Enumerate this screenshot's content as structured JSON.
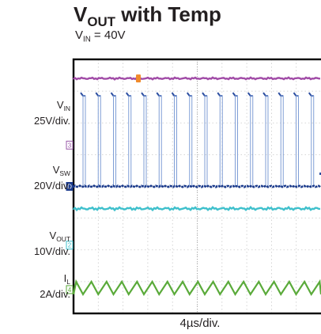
{
  "chart_data": {
    "type": "line",
    "title": {
      "main": "V",
      "sub": "OUT",
      "rest": " with Temp"
    },
    "subtitle": {
      "main": "V",
      "sub": "IN",
      "rest": " = 40V"
    },
    "xlabel": "4µs/div.",
    "x_divisions": 10,
    "y_divisions": 8,
    "grid": true,
    "period_divisions": 0.615,
    "channels": [
      {
        "id": "1",
        "name": "channel-1",
        "color": "#a04aa6",
        "level_div": 7.4,
        "shape": "flat",
        "marker_color": "#f08a2a",
        "scale": ""
      },
      {
        "id": "3",
        "name": {
          "main": "V",
          "sub": "IN"
        },
        "scale": "25V/div.",
        "color": "#2c4ea0",
        "level_div": 4.0,
        "shape": "pulses-high",
        "marker_color": "#9a5aa8"
      },
      {
        "id": "D",
        "name": {
          "main": "V",
          "sub": "SW"
        },
        "scale": "20V/div.",
        "color": "#1a3a8c",
        "level_div": 4.0,
        "shape": "switch",
        "marker_color": "#1a3a8c"
      },
      {
        "id": "2",
        "name": {
          "main": "V",
          "sub": "OUT"
        },
        "scale": "10V/div.",
        "color": "#3fc0cc",
        "level_div": 3.3,
        "shape": "flat-noisy",
        "marker_color": "#3fc0cc"
      },
      {
        "id": "4",
        "name": {
          "main": "I",
          "sub": "L"
        },
        "scale": "2A/div.",
        "color": "#5aaa3a",
        "level_div": 0.8,
        "shape": "triangle",
        "marker_color": "#5aaa3a"
      }
    ]
  }
}
